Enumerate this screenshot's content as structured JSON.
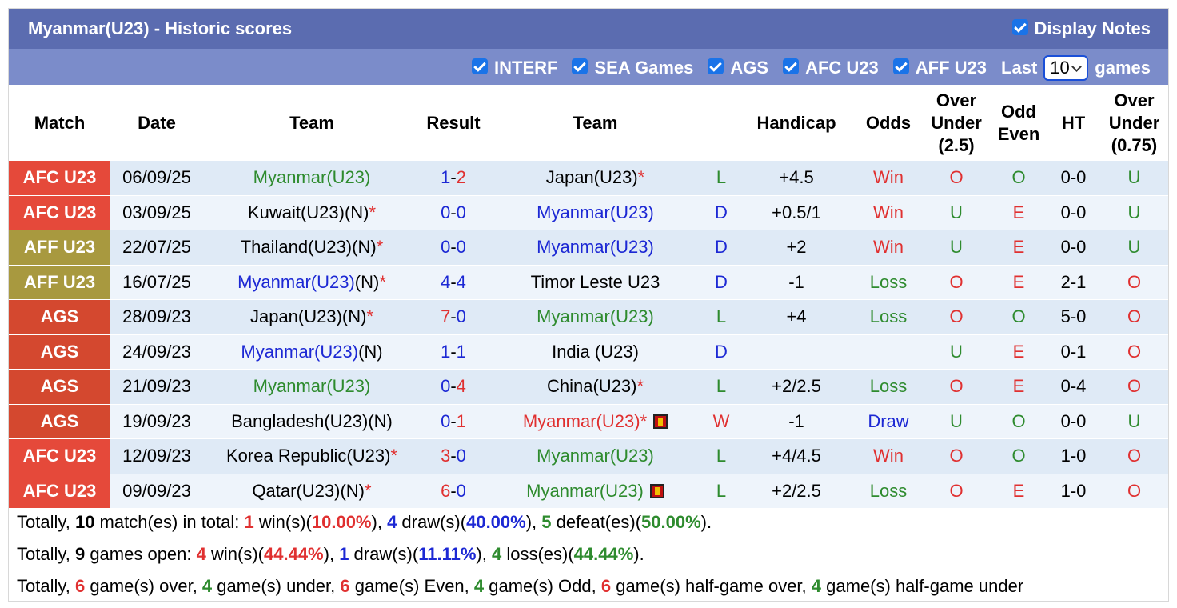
{
  "header": {
    "title": "Myanmar(U23) - Historic scores",
    "display_notes": "Display Notes",
    "filters": [
      "INTERF",
      "SEA Games",
      "AGS",
      "AFC U23",
      "AFF U23"
    ],
    "last_label": "Last",
    "last_value": "10",
    "games_label": "games"
  },
  "table": {
    "columns": [
      "Match",
      "Date",
      "Team",
      "Result",
      "Team",
      "Handicap",
      "Odds",
      "Over Under (2.5)",
      "Odd Even",
      "HT",
      "Over Under (0.75)"
    ],
    "score_separator": "-",
    "colors": {
      "match": {
        "AFC U23": "#e5493a",
        "AFF U23": "#a8993f",
        "AGS": "#d4482f"
      },
      "outcome": {
        "L": "#2e8b2e",
        "D": "#1c28d4",
        "W": "#e03030"
      },
      "odds": {
        "Win": "#e03030",
        "Loss": "#2e8b2e",
        "Draw": "#1c28d4"
      },
      "ou": {
        "O": "#e03030",
        "U": "#2e8b2e"
      },
      "oe": {
        "O": "#2e8b2e",
        "E": "#e03030"
      },
      "score_high": "#e03030",
      "score_low": "#1c28d4"
    },
    "rows": [
      {
        "match": "AFC U23",
        "date": "06/09/25",
        "home": {
          "name": "Myanmar(U23)",
          "color": "#2e8b2e"
        },
        "score": [
          1,
          2
        ],
        "away": {
          "name": "Japan(U23)",
          "star": "*",
          "color": "#000000"
        },
        "outcome": "L",
        "handicap": "+4.5",
        "odds": "Win",
        "ou": "O",
        "oe": "O",
        "ht": "0-0",
        "ou2": "U"
      },
      {
        "match": "AFC U23",
        "date": "03/09/25",
        "home": {
          "name": "Kuwait(U23)",
          "tag": "(N)",
          "star": "*",
          "color": "#000000"
        },
        "score": [
          0,
          0
        ],
        "away": {
          "name": "Myanmar(U23)",
          "color": "#1c28d4"
        },
        "outcome": "D",
        "handicap": "+0.5/1",
        "odds": "Win",
        "ou": "U",
        "oe": "E",
        "ht": "0-0",
        "ou2": "U"
      },
      {
        "match": "AFF U23",
        "date": "22/07/25",
        "home": {
          "name": "Thailand(U23)",
          "tag": "(N)",
          "star": "*",
          "color": "#000000"
        },
        "score": [
          0,
          0
        ],
        "away": {
          "name": "Myanmar(U23)",
          "color": "#1c28d4"
        },
        "outcome": "D",
        "handicap": "+2",
        "odds": "Win",
        "ou": "U",
        "oe": "E",
        "ht": "0-0",
        "ou2": "U"
      },
      {
        "match": "AFF U23",
        "date": "16/07/25",
        "home": {
          "name": "Myanmar(U23)",
          "tag": "(N)",
          "star": "*",
          "color": "#1c28d4"
        },
        "score": [
          4,
          4
        ],
        "away": {
          "name": "Timor Leste U23",
          "color": "#000000"
        },
        "outcome": "D",
        "handicap": "-1",
        "odds": "Loss",
        "ou": "O",
        "oe": "E",
        "ht": "2-1",
        "ou2": "O"
      },
      {
        "match": "AGS",
        "date": "28/09/23",
        "home": {
          "name": "Japan(U23)",
          "tag": "(N)",
          "star": "*",
          "color": "#000000"
        },
        "score": [
          7,
          0
        ],
        "away": {
          "name": "Myanmar(U23)",
          "color": "#2e8b2e"
        },
        "outcome": "L",
        "handicap": "+4",
        "odds": "Loss",
        "ou": "O",
        "oe": "O",
        "ht": "5-0",
        "ou2": "O"
      },
      {
        "match": "AGS",
        "date": "24/09/23",
        "home": {
          "name": "Myanmar(U23)",
          "tag": "(N)",
          "color": "#1c28d4"
        },
        "score": [
          1,
          1
        ],
        "away": {
          "name": "India (U23)",
          "color": "#000000"
        },
        "outcome": "D",
        "handicap": null,
        "odds": null,
        "ou": "U",
        "oe": "E",
        "ht": "0-1",
        "ou2": "O"
      },
      {
        "match": "AGS",
        "date": "21/09/23",
        "home": {
          "name": "Myanmar(U23)",
          "color": "#2e8b2e"
        },
        "score": [
          0,
          4
        ],
        "away": {
          "name": "China(U23)",
          "star": "*",
          "color": "#000000"
        },
        "outcome": "L",
        "handicap": "+2/2.5",
        "odds": "Loss",
        "ou": "O",
        "oe": "E",
        "ht": "0-4",
        "ou2": "O"
      },
      {
        "match": "AGS",
        "date": "19/09/23",
        "home": {
          "name": "Bangladesh(U23)",
          "tag": "(N)",
          "color": "#000000"
        },
        "score": [
          0,
          1
        ],
        "away": {
          "name": "Myanmar(U23)",
          "star": "*",
          "color": "#e03030",
          "red_card": true
        },
        "outcome": "W",
        "handicap": "-1",
        "odds": "Draw",
        "ou": "U",
        "oe": "O",
        "ht": "0-0",
        "ou2": "U"
      },
      {
        "match": "AFC U23",
        "date": "12/09/23",
        "home": {
          "name": "Korea Republic(U23)",
          "star": "*",
          "color": "#000000"
        },
        "score": [
          3,
          0
        ],
        "away": {
          "name": "Myanmar(U23)",
          "color": "#2e8b2e"
        },
        "outcome": "L",
        "handicap": "+4/4.5",
        "odds": "Win",
        "ou": "O",
        "oe": "O",
        "ht": "1-0",
        "ou2": "O"
      },
      {
        "match": "AFC U23",
        "date": "09/09/23",
        "home": {
          "name": "Qatar(U23)",
          "tag": "(N)",
          "star": "*",
          "color": "#000000"
        },
        "score": [
          6,
          0
        ],
        "away": {
          "name": "Myanmar(U23)",
          "color": "#2e8b2e",
          "red_card": true
        },
        "outcome": "L",
        "handicap": "+2/2.5",
        "odds": "Loss",
        "ou": "O",
        "oe": "E",
        "ht": "1-0",
        "ou2": "O"
      }
    ]
  },
  "summary": [
    [
      {
        "t": "Totally, "
      },
      {
        "t": "10",
        "b": true
      },
      {
        "t": " match(es) in total: "
      },
      {
        "t": "1",
        "c": "#e03030",
        "b": true
      },
      {
        "t": " win(s)("
      },
      {
        "t": "10.00%",
        "c": "#e03030",
        "b": true
      },
      {
        "t": "), "
      },
      {
        "t": "4",
        "c": "#1c28d4",
        "b": true
      },
      {
        "t": " draw(s)("
      },
      {
        "t": "40.00%",
        "c": "#1c28d4",
        "b": true
      },
      {
        "t": "), "
      },
      {
        "t": "5",
        "c": "#2e8b2e",
        "b": true
      },
      {
        "t": " defeat(es)("
      },
      {
        "t": "50.00%",
        "c": "#2e8b2e",
        "b": true
      },
      {
        "t": ")."
      }
    ],
    [
      {
        "t": "Totally, "
      },
      {
        "t": "9",
        "b": true
      },
      {
        "t": " games open: "
      },
      {
        "t": "4",
        "c": "#e03030",
        "b": true
      },
      {
        "t": " win(s)("
      },
      {
        "t": "44.44%",
        "c": "#e03030",
        "b": true
      },
      {
        "t": "), "
      },
      {
        "t": "1",
        "c": "#1c28d4",
        "b": true
      },
      {
        "t": " draw(s)("
      },
      {
        "t": "11.11%",
        "c": "#1c28d4",
        "b": true
      },
      {
        "t": "), "
      },
      {
        "t": "4",
        "c": "#2e8b2e",
        "b": true
      },
      {
        "t": " loss(es)("
      },
      {
        "t": "44.44%",
        "c": "#2e8b2e",
        "b": true
      },
      {
        "t": ")."
      }
    ],
    [
      {
        "t": "Totally, "
      },
      {
        "t": "6",
        "c": "#e03030",
        "b": true
      },
      {
        "t": " game(s) over, "
      },
      {
        "t": "4",
        "c": "#2e8b2e",
        "b": true
      },
      {
        "t": " game(s) under, "
      },
      {
        "t": "6",
        "c": "#e03030",
        "b": true
      },
      {
        "t": " game(s) Even, "
      },
      {
        "t": "4",
        "c": "#2e8b2e",
        "b": true
      },
      {
        "t": " game(s) Odd, "
      },
      {
        "t": "6",
        "c": "#e03030",
        "b": true
      },
      {
        "t": " game(s) half-game over, "
      },
      {
        "t": "4",
        "c": "#2e8b2e",
        "b": true
      },
      {
        "t": " game(s) half-game under"
      }
    ]
  ]
}
